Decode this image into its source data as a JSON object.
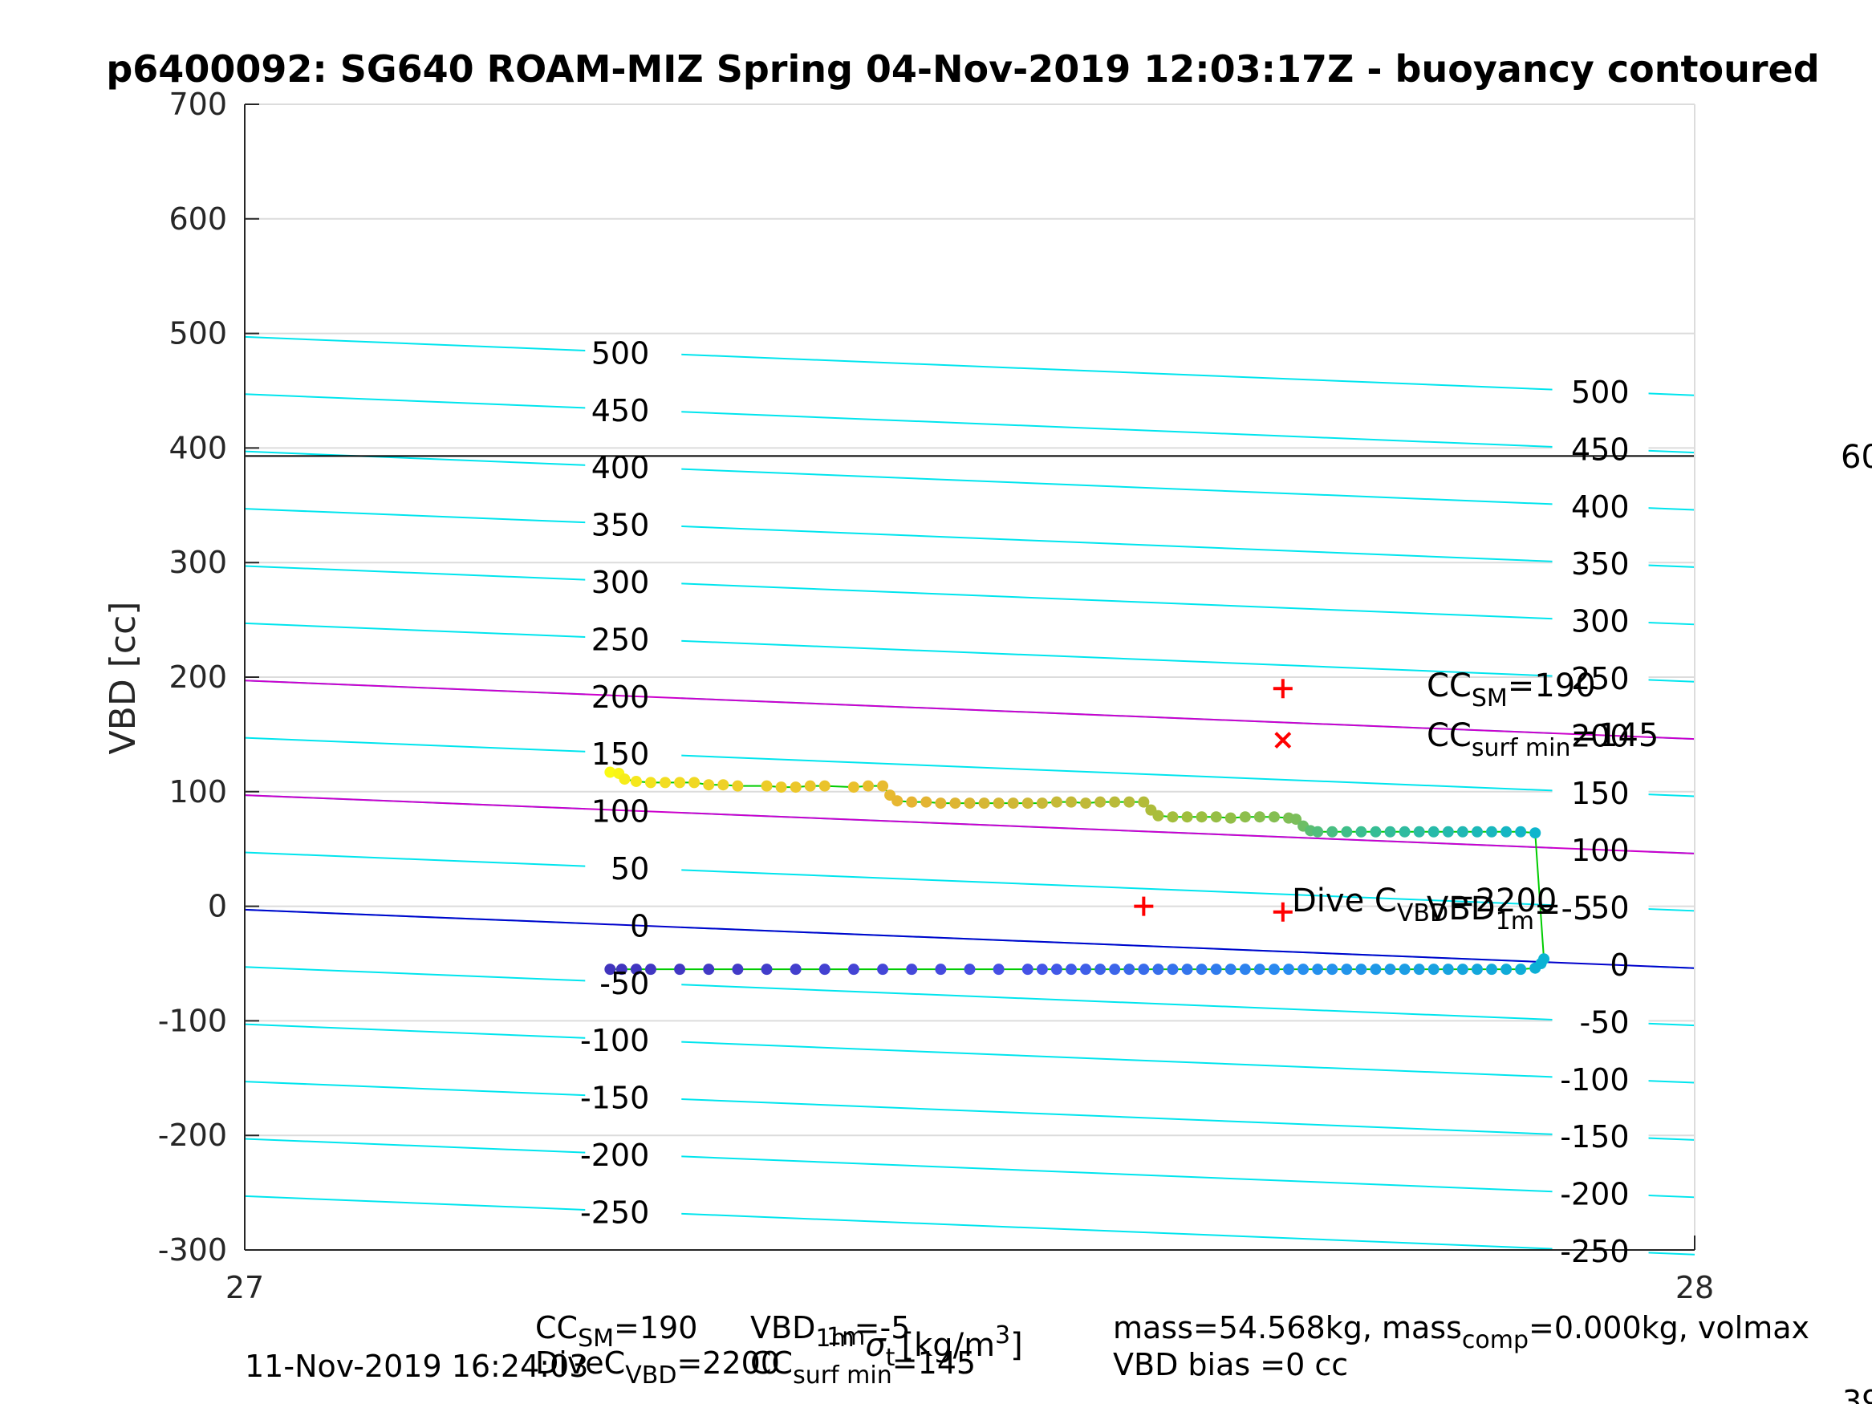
{
  "chart_data": {
    "type": "scatter",
    "title": "p6400092: SG640 ROAM-MIZ Spring 04-Nov-2019 12:03:17Z - buoyancy contoured",
    "xlabel_parts": {
      "base": "σ",
      "sub": "t",
      "unit": "[kg/m",
      "sup": "3",
      "close": "]",
      "pre_sup": "1m"
    },
    "ylabel": "VBD [cc]",
    "xlim": [
      27,
      28
    ],
    "ylim": [
      -300,
      700
    ],
    "x_ticks": [
      "27",
      "28"
    ],
    "y_ticks": [
      "-300",
      "-200",
      "-100",
      "0",
      "100",
      "200",
      "300",
      "400",
      "500",
      "600",
      "700"
    ],
    "grid": true,
    "contours": {
      "levels": [
        -250,
        -200,
        -150,
        -100,
        -50,
        0,
        50,
        100,
        150,
        200,
        250,
        300,
        350,
        400,
        450,
        500
      ],
      "left_offset": -3,
      "right_offset": -54,
      "label_left_x": 27.268,
      "label_right_x": 27.935,
      "left_labels": [
        "-250",
        "-200",
        "-150",
        "-100",
        "-50",
        "0",
        "50",
        "100",
        "150",
        "200",
        "250",
        "300",
        "350",
        "400",
        "450",
        "500"
      ],
      "right_labels": [
        "-250",
        "-200",
        "-150",
        "-100",
        "-50",
        "0",
        "50",
        "100",
        "150",
        "200",
        "250",
        "300",
        "350",
        "400",
        "450",
        "500"
      ],
      "color": "#00e5ee"
    },
    "reference_lines": [
      {
        "name": "vbd-max",
        "y": [
          393,
          393
        ],
        "color": "#000000"
      },
      {
        "name": "cc-sm-line",
        "y": [
          197,
          146
        ],
        "color": "#cc00cc"
      },
      {
        "name": "cc-surf-min-line",
        "y": [
          97,
          46
        ],
        "color": "#cc00cc"
      },
      {
        "name": "zero-buoyancy-line",
        "y": [
          -3,
          -54
        ],
        "color": "#0000cc"
      }
    ],
    "markers": [
      {
        "name": "cc-sm-marker",
        "x": 27.716,
        "y": 190,
        "symbol": "+",
        "color": "#ff0000"
      },
      {
        "name": "cc-surf-min-marker",
        "x": 27.716,
        "y": 145,
        "symbol": "x",
        "color": "#ff0000"
      },
      {
        "name": "dive-marker-1",
        "x": 27.62,
        "y": 0,
        "symbol": "+",
        "color": "#ff0000"
      },
      {
        "name": "dive-marker-2",
        "x": 27.716,
        "y": -5,
        "symbol": "+",
        "color": "#ff0000"
      }
    ],
    "series": [
      {
        "points_descent": [
          [
            27.252,
            117,
            0.0
          ],
          [
            27.258,
            116,
            0.02
          ],
          [
            27.262,
            111,
            0.06
          ],
          [
            27.27,
            109,
            0.08
          ],
          [
            27.28,
            108,
            0.1
          ],
          [
            27.29,
            108,
            0.12
          ],
          [
            27.3,
            108,
            0.13
          ],
          [
            27.31,
            108,
            0.14
          ],
          [
            27.32,
            106,
            0.16
          ],
          [
            27.33,
            106,
            0.17
          ],
          [
            27.34,
            105,
            0.18
          ],
          [
            27.36,
            105,
            0.19
          ],
          [
            27.37,
            104,
            0.2
          ],
          [
            27.38,
            104,
            0.21
          ],
          [
            27.39,
            105,
            0.22
          ],
          [
            27.4,
            105,
            0.23
          ],
          [
            27.42,
            104,
            0.24
          ],
          [
            27.43,
            105,
            0.25
          ],
          [
            27.44,
            105,
            0.26
          ],
          [
            27.445,
            97,
            0.27
          ],
          [
            27.45,
            92,
            0.28
          ],
          [
            27.46,
            91,
            0.29
          ],
          [
            27.47,
            91,
            0.3
          ],
          [
            27.48,
            90,
            0.31
          ],
          [
            27.49,
            90,
            0.32
          ],
          [
            27.5,
            90,
            0.33
          ],
          [
            27.51,
            90,
            0.34
          ],
          [
            27.52,
            90,
            0.35
          ],
          [
            27.53,
            90,
            0.36
          ],
          [
            27.54,
            90,
            0.37
          ],
          [
            27.55,
            90,
            0.38
          ],
          [
            27.56,
            91,
            0.39
          ],
          [
            27.57,
            91,
            0.4
          ],
          [
            27.58,
            90,
            0.41
          ],
          [
            27.59,
            91,
            0.42
          ],
          [
            27.6,
            91,
            0.43
          ],
          [
            27.61,
            91,
            0.44
          ],
          [
            27.62,
            91,
            0.45
          ],
          [
            27.625,
            84,
            0.47
          ],
          [
            27.63,
            79,
            0.48
          ],
          [
            27.64,
            78,
            0.5
          ],
          [
            27.65,
            78,
            0.51
          ],
          [
            27.66,
            78,
            0.52
          ],
          [
            27.67,
            78,
            0.53
          ],
          [
            27.68,
            77,
            0.54
          ],
          [
            27.69,
            78,
            0.55
          ],
          [
            27.7,
            78,
            0.56
          ],
          [
            27.71,
            78,
            0.57
          ],
          [
            27.72,
            77,
            0.58
          ],
          [
            27.725,
            76,
            0.59
          ],
          [
            27.73,
            70,
            0.62
          ],
          [
            27.735,
            66,
            0.66
          ],
          [
            27.74,
            65,
            0.68
          ],
          [
            27.75,
            65,
            0.7
          ],
          [
            27.76,
            65,
            0.72
          ],
          [
            27.77,
            65,
            0.74
          ],
          [
            27.78,
            65,
            0.76
          ],
          [
            27.79,
            65,
            0.78
          ],
          [
            27.8,
            65,
            0.8
          ],
          [
            27.81,
            65,
            0.82
          ],
          [
            27.82,
            65,
            0.84
          ],
          [
            27.83,
            65,
            0.86
          ],
          [
            27.84,
            65,
            0.88
          ],
          [
            27.85,
            65,
            0.9
          ],
          [
            27.86,
            65,
            0.92
          ],
          [
            27.87,
            65,
            0.94
          ],
          [
            27.88,
            65,
            0.96
          ],
          [
            27.89,
            64,
            0.98
          ]
        ],
        "points_ascent": [
          [
            27.896,
            -46,
            0.0
          ],
          [
            27.894,
            -50,
            0.02
          ],
          [
            27.89,
            -54,
            0.04
          ],
          [
            27.88,
            -55,
            0.06
          ],
          [
            27.87,
            -55,
            0.08
          ],
          [
            27.86,
            -55,
            0.1
          ],
          [
            27.85,
            -55,
            0.12
          ],
          [
            27.84,
            -55,
            0.14
          ],
          [
            27.83,
            -55,
            0.16
          ],
          [
            27.82,
            -55,
            0.18
          ],
          [
            27.81,
            -55,
            0.2
          ],
          [
            27.8,
            -55,
            0.22
          ],
          [
            27.79,
            -55,
            0.24
          ],
          [
            27.78,
            -55,
            0.26
          ],
          [
            27.77,
            -55,
            0.28
          ],
          [
            27.76,
            -55,
            0.3
          ],
          [
            27.75,
            -55,
            0.32
          ],
          [
            27.74,
            -55,
            0.34
          ],
          [
            27.73,
            -55,
            0.36
          ],
          [
            27.72,
            -55,
            0.38
          ],
          [
            27.71,
            -55,
            0.4
          ],
          [
            27.7,
            -55,
            0.42
          ],
          [
            27.69,
            -55,
            0.44
          ],
          [
            27.68,
            -55,
            0.46
          ],
          [
            27.67,
            -55,
            0.48
          ],
          [
            27.66,
            -55,
            0.5
          ],
          [
            27.65,
            -55,
            0.52
          ],
          [
            27.64,
            -55,
            0.54
          ],
          [
            27.63,
            -55,
            0.56
          ],
          [
            27.62,
            -55,
            0.58
          ],
          [
            27.61,
            -55,
            0.6
          ],
          [
            27.6,
            -55,
            0.62
          ],
          [
            27.59,
            -55,
            0.64
          ],
          [
            27.58,
            -55,
            0.66
          ],
          [
            27.57,
            -55,
            0.68
          ],
          [
            27.56,
            -55,
            0.7
          ],
          [
            27.55,
            -55,
            0.72
          ],
          [
            27.54,
            -55,
            0.74
          ],
          [
            27.52,
            -55,
            0.76
          ],
          [
            27.5,
            -55,
            0.78
          ],
          [
            27.48,
            -55,
            0.8
          ],
          [
            27.46,
            -55,
            0.82
          ],
          [
            27.44,
            -55,
            0.84
          ],
          [
            27.42,
            -55,
            0.86
          ],
          [
            27.4,
            -55,
            0.88
          ],
          [
            27.38,
            -55,
            0.9
          ],
          [
            27.36,
            -55,
            0.92
          ],
          [
            27.34,
            -55,
            0.94
          ],
          [
            27.32,
            -55,
            0.95
          ],
          [
            27.3,
            -55,
            0.96
          ],
          [
            27.28,
            -55,
            0.97
          ],
          [
            27.27,
            -55,
            0.98
          ],
          [
            27.26,
            -55,
            0.99
          ],
          [
            27.252,
            -55,
            1.0
          ]
        ],
        "line_color": "#00cc00"
      }
    ]
  },
  "annotations": {
    "cc_sm": {
      "base": "CC",
      "sub": "SM",
      "rest": "=190"
    },
    "cc_surf_min": {
      "base": "CC",
      "sub": "surf min",
      "rest": "=145"
    },
    "dive_c": {
      "base": "Dive C",
      "sub": "VBD",
      "rest": "=2200"
    },
    "vbd_1m": {
      "base": "VBD",
      "sub": "1m",
      "rest": "=-5"
    },
    "right_cut": "60"
  },
  "footer": {
    "timestamp": "11-Nov-2019 16:24:03",
    "line1_a": {
      "base": "CC",
      "sub": "SM",
      "rest": "=190"
    },
    "line1_b": {
      "base": "VBD",
      "sub": "1m",
      "rest": "=-5"
    },
    "line2_a": {
      "base": "DiveC",
      "sub": "VBD",
      "rest": "=2200"
    },
    "line2_b": {
      "base": "CC",
      "sub": "surf min",
      "rest": "=145"
    },
    "mass_line": {
      "a": "mass=54.568kg, mass",
      "sub": "comp",
      "b": "=0.000kg, volmax"
    },
    "bias_line": "VBD bias =0 cc",
    "corner_cut": "39"
  }
}
